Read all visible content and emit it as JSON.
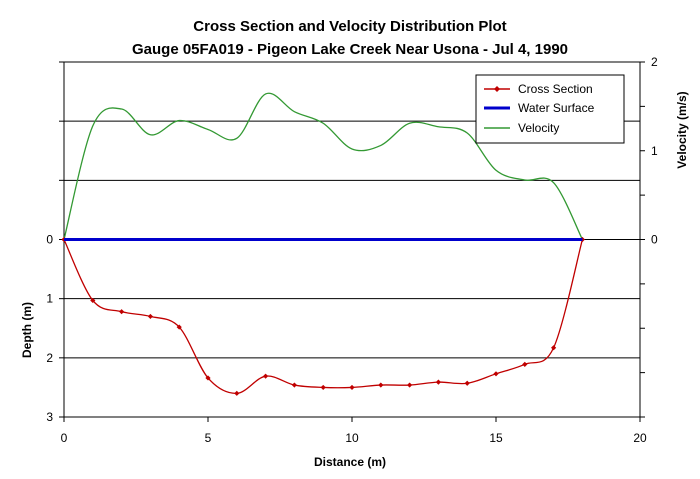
{
  "chart_data": {
    "type": "line",
    "title": "Cross Section and Velocity Distribution Plot",
    "subtitle": "Gauge 05FA019 - Pigeon Lake Creek Near Usona - Jul 4, 1990",
    "xlabel": "Distance (m)",
    "ylabel_left": "Depth (m)",
    "ylabel_right": "Velocity (m/s)",
    "xlim": [
      0,
      20
    ],
    "xticks": [
      "0",
      "5",
      "10",
      "15",
      "20"
    ],
    "depth_lim": [
      -3,
      3
    ],
    "depth_ticks": [
      "0",
      "1",
      "2",
      "3"
    ],
    "velocity_lim": [
      -2,
      2
    ],
    "velocity_ticks": [
      "0",
      "1",
      "2"
    ],
    "legend_position": "top-right",
    "colors": {
      "cross_section": "#c00000",
      "water_surface": "#0000cc",
      "velocity": "#339933",
      "gridline": "#000000"
    },
    "series": [
      {
        "name": "Cross Section",
        "axis": "depth",
        "marker": "diamond",
        "x": [
          0,
          1,
          2,
          3,
          4,
          5,
          6,
          7,
          8,
          9,
          10,
          11,
          12,
          13,
          14,
          15,
          16,
          17,
          18
        ],
        "y": [
          0,
          1.03,
          1.22,
          1.3,
          1.48,
          2.34,
          2.6,
          2.31,
          2.46,
          2.5,
          2.5,
          2.46,
          2.46,
          2.41,
          2.43,
          2.27,
          2.11,
          1.83,
          0
        ]
      },
      {
        "name": "Water Surface",
        "axis": "depth",
        "x": [
          0,
          18
        ],
        "y": [
          0,
          0
        ]
      },
      {
        "name": "Velocity",
        "axis": "velocity",
        "x": [
          0,
          1,
          2,
          3,
          4,
          5,
          6,
          7,
          8,
          9,
          10,
          11,
          12,
          13,
          14,
          15,
          16,
          17,
          18
        ],
        "y": [
          0,
          1.28,
          1.47,
          1.18,
          1.34,
          1.24,
          1.14,
          1.64,
          1.44,
          1.31,
          1.02,
          1.06,
          1.31,
          1.27,
          1.2,
          0.78,
          0.67,
          0.64,
          0
        ]
      }
    ]
  }
}
